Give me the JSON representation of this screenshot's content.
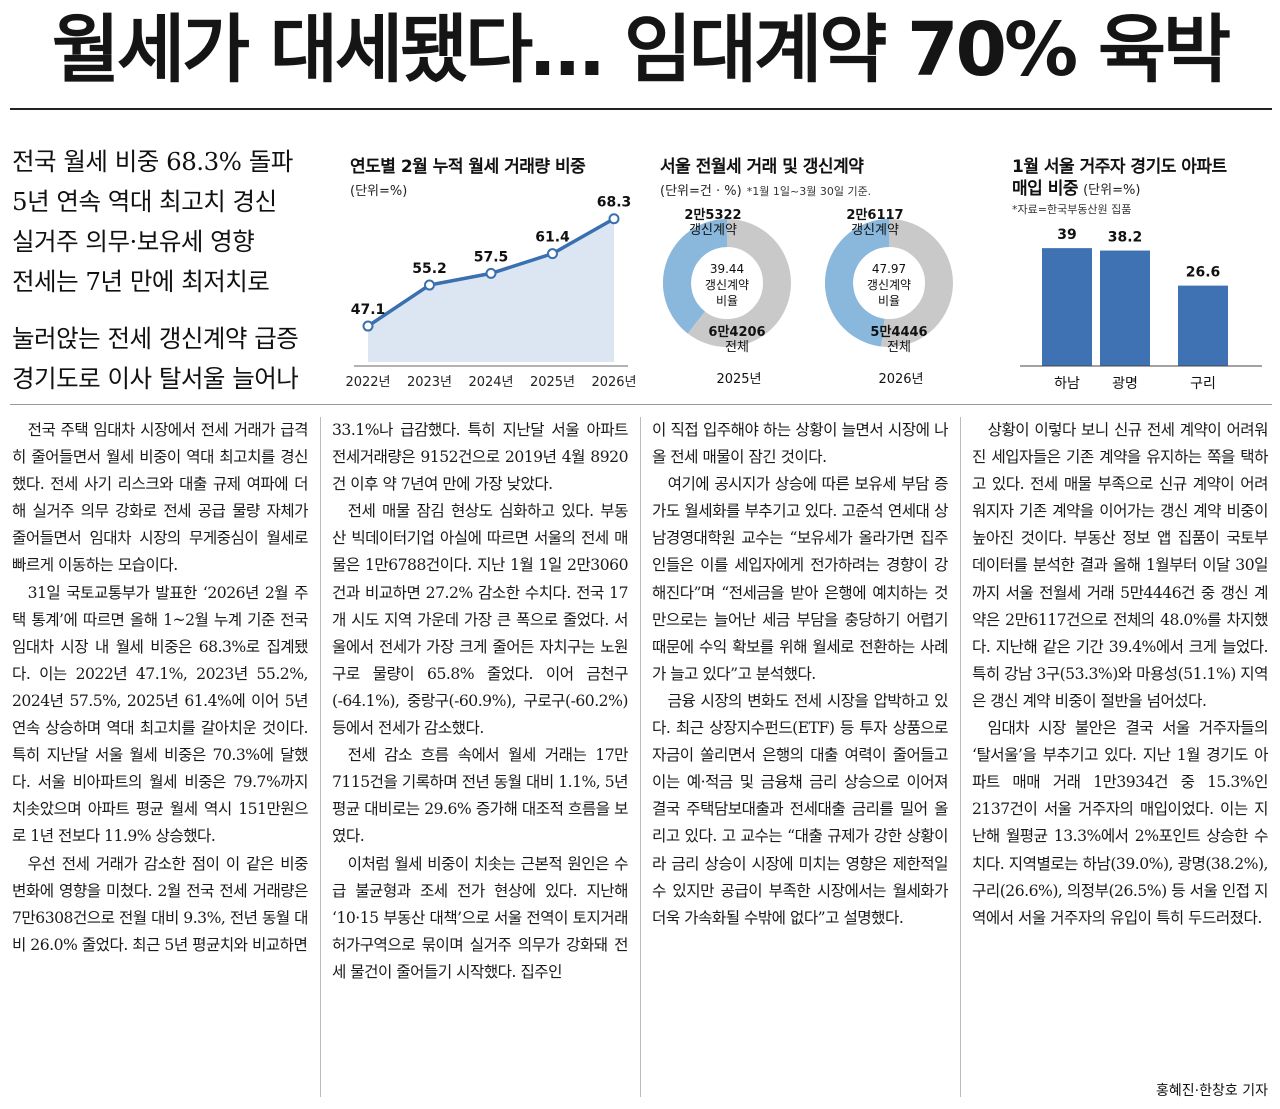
{
  "headline": "월세가 대세됐다… 임대계약 70% 육박",
  "subheads": [
    "전국 월세 비중 68.3% 돌파",
    "5년 연속 역대 최고치 경신",
    "실거주 의무·보유세 영향",
    "전세는 7년 만에 최저치로",
    "눌러앉는 전세 갱신계약 급증",
    "경기도로 이사 탈서울 늘어나"
  ],
  "chart_data": [
    {
      "type": "area",
      "title": "연도별 2월 누적 월세 거래량 비중",
      "unit": "(단위=%)",
      "categories": [
        "2022년",
        "2023년",
        "2024년",
        "2025년",
        "2026년"
      ],
      "values": [
        47.1,
        55.2,
        57.5,
        61.4,
        68.3
      ],
      "value_labels": [
        "47.1",
        "55.2",
        "57.5",
        "61.4",
        "68.3"
      ],
      "colors": {
        "line": "#3a6fb0",
        "fill": "#dbe6f2",
        "marker_fill": "#ffffff"
      }
    },
    {
      "type": "pie",
      "title": "서울 전월세 거래 및 갱신계약",
      "unit": "(단위=건 · %)",
      "note": "*1월 1일~3월 30일 기준.",
      "donuts": [
        {
          "year": "2025년",
          "renewal_value": "2만5322",
          "renewal_label": "갱신계약",
          "total_value": "6만4206",
          "total_label": "전체",
          "center_value": "39.44",
          "center_label1": "갱신계약",
          "center_label2": "비율",
          "share": 39.44
        },
        {
          "year": "2026년",
          "renewal_value": "2만6117",
          "renewal_label": "갱신계약",
          "total_value": "5만4446",
          "total_label": "전체",
          "center_value": "47.97",
          "center_label1": "갱신계약",
          "center_label2": "비율",
          "share": 47.97
        }
      ],
      "colors": {
        "renewal": "#89b8dc",
        "rest": "#c9c9c9"
      }
    },
    {
      "type": "bar",
      "title_line1": "1월 서울 거주자 경기도 아파트",
      "title_line2": "매입 비중",
      "unit": "(단위=%)",
      "note": "*자료=한국부동산원 집품",
      "categories": [
        "하남",
        "광명",
        "구리"
      ],
      "values": [
        39,
        38.2,
        26.6
      ],
      "value_labels": [
        "39",
        "38.2",
        "26.6"
      ],
      "ylim": [
        0,
        45
      ],
      "colors": {
        "bar": "#3f72b2"
      }
    }
  ],
  "columns": [
    [
      {
        "text": "전국 주택 임대차 시장에서 전세 거래가 급격히 줄어들면서 월세 비중이 역대 최고치를 경신했다. 전세 사기 리스크와 대출 규제 여파에 더해 실거주 의무 강화로 전세 공급 물량 자체가 줄어들면서 임대차 시장의 무게중심이 월세로 빠르게 이동하는 모습이다.",
        "indent": true
      },
      {
        "text": "31일 국토교통부가 발표한 ‘2026년 2월 주택 통계’에 따르면 올해 1~2월 누계 기준 전국 임대차 시장 내 월세 비중은 68.3%로 집계됐다. 이는 2022년 47.1%, 2023년 55.2%, 2024년 57.5%, 2025년 61.4%에 이어 5년 연속 상승하며 역대 최고치를 갈아치운 것이다. 특히 지난달 서울 월세 비중은 70.3%에 달했다. 서울 비아파트의 월세 비중은 79.7%까지 치솟았으며 아파트 평균 월세 역시 151만원으로 1년 전보다 11.9% 상승했다.",
        "indent": true
      },
      {
        "text": "우선 전세 거래가 감소한 점이 이 같은 비중 변화에 영향을 미쳤다. 2월 전국 전세 거래량은 7만6308건으로 전월 대비 9.3%, 전년 동월 대비 26.0% 줄었다. 최근 5년 평균치와 비교하면",
        "indent": true
      }
    ],
    [
      {
        "text": "33.1%나 급감했다. 특히 지난달 서울 아파트 전세거래량은 9152건으로 2019년 4월 8920건 이후 약 7년여 만에 가장 낮았다.",
        "indent": false
      },
      {
        "text": "전세 매물 잠김 현상도 심화하고 있다. 부동산 빅데이터기업 아실에 따르면 서울의 전세 매물은 1만6788건이다. 지난 1월 1일 2만3060건과 비교하면 27.2% 감소한 수치다. 전국 17개 시도 지역 가운데 가장 큰 폭으로 줄었다. 서울에서 전세가 가장 크게 줄어든 자치구는 노원구로 물량이 65.8% 줄었다. 이어 금천구(-64.1%), 중랑구(-60.9%), 구로구(-60.2%) 등에서 전세가 감소했다.",
        "indent": true
      },
      {
        "text": "전세 감소 흐름 속에서 월세 거래는 17만7115건을 기록하며 전년 동월 대비 1.1%, 5년 평균 대비로는 29.6% 증가해 대조적 흐름을 보였다.",
        "indent": true
      },
      {
        "text": "이처럼 월세 비중이 치솟는 근본적 원인은 수급 불균형과 조세 전가 현상에 있다. 지난해 ‘10·15 부동산 대책’으로 서울 전역이 토지거래허가구역으로 묶이며 실거주 의무가 강화돼 전세 물건이 줄어들기 시작했다. 집주인",
        "indent": true
      }
    ],
    [
      {
        "text": "이 직접 입주해야 하는 상황이 늘면서 시장에 나올 전세 매물이 잠긴 것이다.",
        "indent": false
      },
      {
        "text": "여기에 공시지가 상승에 따른 보유세 부담 증가도 월세화를 부추기고 있다. 고준석 연세대 상남경영대학원 교수는 “보유세가 올라가면 집주인들은 이를 세입자에게 전가하려는 경향이 강해진다”며 “전세금을 받아 은행에 예치하는 것만으로는 늘어난 세금 부담을 충당하기 어렵기 때문에 수익 확보를 위해 월세로 전환하는 사례가 늘고 있다”고 분석했다.",
        "indent": true
      },
      {
        "text": "금융 시장의 변화도 전세 시장을 압박하고 있다. 최근 상장지수펀드(ETF) 등 투자 상품으로 자금이 쏠리면서 은행의 대출 여력이 줄어들고 이는 예·적금 및 금융채 금리 상승으로 이어져 결국 주택담보대출과 전세대출 금리를 밀어 올리고 있다. 고 교수는 “대출 규제가 강한 상황이라 금리 상승이 시장에 미치는 영향은 제한적일 수 있지만 공급이 부족한 시장에서는 월세화가 더욱 가속화될 수밖에 없다”고 설명했다.",
        "indent": true
      }
    ],
    [
      {
        "text": "상황이 이렇다 보니 신규 전세 계약이 어려워진 세입자들은 기존 계약을 유지하는 쪽을 택하고 있다. 전세 매물 부족으로 신규 계약이 어려워지자 기존 계약을 이어가는 갱신 계약 비중이 높아진 것이다. 부동산 정보 앱 집품이 국토부 데이터를 분석한 결과 올해 1월부터 이달 30일까지 서울 전월세 거래 5만4446건 중 갱신 계약은 2만6117건으로 전체의 48.0%를 차지했다. 지난해 같은 기간 39.4%에서 크게 늘었다. 특히 강남 3구(53.3%)와 마용성(51.1%) 지역은 갱신 계약 비중이 절반을 넘어섰다.",
        "indent": true
      },
      {
        "text": "임대차 시장 불안은 결국 서울 거주자들의 ‘탈서울’을 부추기고 있다. 지난 1월 경기도 아파트 매매 거래 1만3934건 중 15.3%인 2137건이 서울 거주자의 매입이었다. 이는 지난해 월평균 13.3%에서 2%포인트 상승한 수치다. 지역별로는 하남(39.0%), 광명(38.2%), 구리(26.6%), 의정부(26.5%) 등 서울 인접 지역에서 서울 거주자의 유입이 특히 두드러졌다.",
        "indent": true
      }
    ]
  ],
  "byline": "홍혜진·한창호 기자"
}
